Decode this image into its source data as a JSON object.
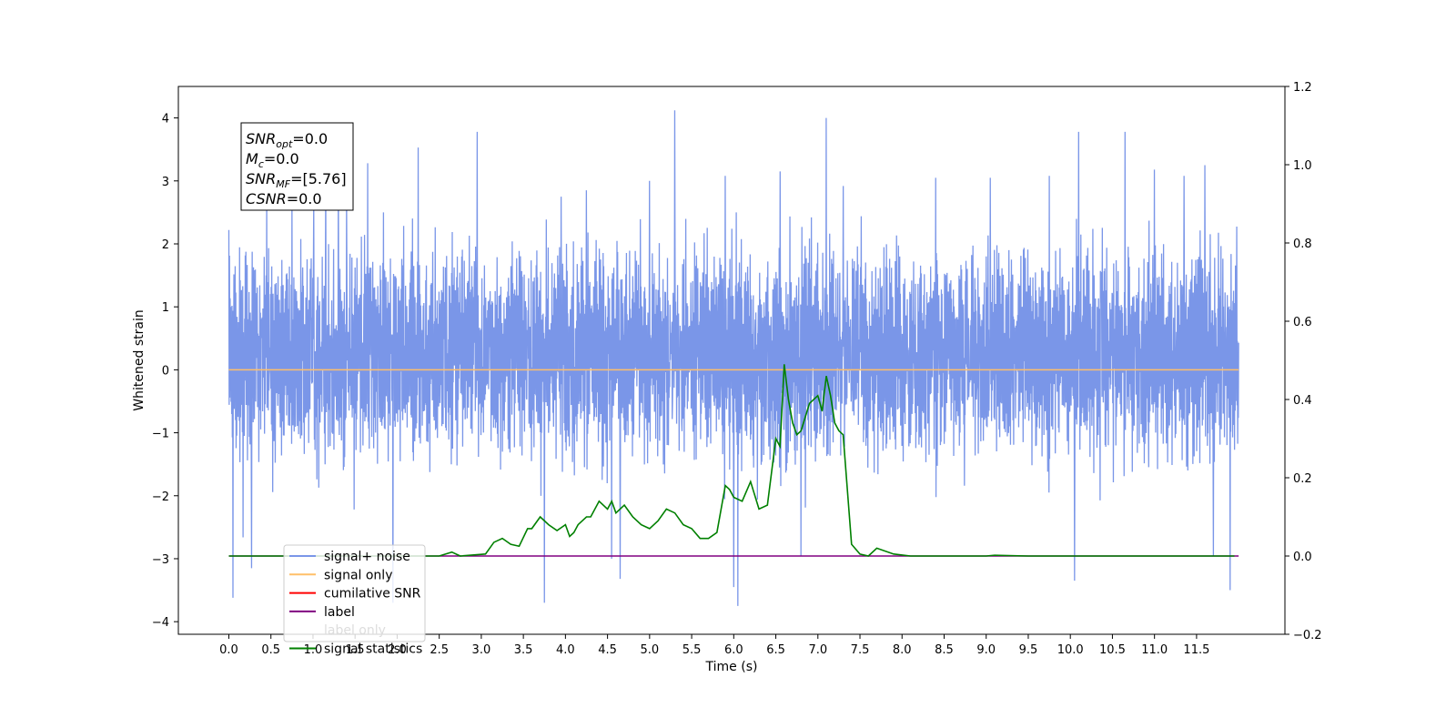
{
  "chart_data": {
    "type": "line",
    "xlabel": "Time (s)",
    "ylabel": "Whitened strain",
    "xlim": [
      -0.6,
      12.55
    ],
    "ylim": [
      -4.2,
      4.5
    ],
    "y2lim": [
      -0.2,
      1.2
    ],
    "x_ticks": [
      "0.0",
      "0.5",
      "1.0",
      "1.5",
      "2.0",
      "2.5",
      "3.0",
      "3.5",
      "4.0",
      "4.5",
      "5.0",
      "5.5",
      "6.0",
      "6.5",
      "7.0",
      "7.5",
      "8.0",
      "8.5",
      "9.0",
      "9.5",
      "10.0",
      "10.5",
      "11.0",
      "11.5"
    ],
    "y_ticks": [
      "4",
      "3",
      "2",
      "1",
      "0",
      "−1",
      "−2",
      "−3",
      "−4"
    ],
    "y2_ticks": [
      "1.2",
      "1.0",
      "0.8",
      "0.6",
      "0.4",
      "0.2",
      "0.0",
      "−0.2"
    ],
    "grid": false,
    "legend_position": "lower-left",
    "annotation": {
      "lines": [
        {
          "base": "SNR",
          "sub": "opt",
          "value": "=0.0"
        },
        {
          "base": "M",
          "sub": "c",
          "value": "=0.0"
        },
        {
          "base": "SNR",
          "sub": "MF",
          "value": "=[5.76]"
        },
        {
          "base": "CSNR",
          "sub": "",
          "value": "=0.0"
        }
      ]
    },
    "series": [
      {
        "name": "signal+ noise",
        "color": "#7a96e8",
        "axis": "left",
        "x_range": [
          0.0,
          12.0
        ],
        "description": "whitened noise, roughly in [-2, 2] with spikes",
        "peaks": [
          {
            "x": 0.0,
            "y": 2.22
          },
          {
            "x": 0.05,
            "y": -3.62
          },
          {
            "x": 0.17,
            "y": -2.66
          },
          {
            "x": 0.27,
            "y": -3.15
          },
          {
            "x": 0.45,
            "y": 2.78
          },
          {
            "x": 0.75,
            "y": 2.72
          },
          {
            "x": 1.01,
            "y": 2.65
          },
          {
            "x": 1.15,
            "y": 3.1
          },
          {
            "x": 1.3,
            "y": 3.03
          },
          {
            "x": 1.4,
            "y": 2.73
          },
          {
            "x": 1.65,
            "y": 3.28
          },
          {
            "x": 1.95,
            "y": -3.7
          },
          {
            "x": 2.25,
            "y": 3.53
          },
          {
            "x": 2.95,
            "y": 3.78
          },
          {
            "x": 3.75,
            "y": -3.7
          },
          {
            "x": 3.95,
            "y": 2.75
          },
          {
            "x": 4.25,
            "y": 2.85
          },
          {
            "x": 4.55,
            "y": -3.0
          },
          {
            "x": 4.65,
            "y": -3.32
          },
          {
            "x": 5.0,
            "y": 3.0
          },
          {
            "x": 5.3,
            "y": 4.12
          },
          {
            "x": 5.9,
            "y": 3.08
          },
          {
            "x": 6.0,
            "y": -3.45
          },
          {
            "x": 6.05,
            "y": -3.75
          },
          {
            "x": 6.55,
            "y": 3.15
          },
          {
            "x": 6.8,
            "y": -2.96
          },
          {
            "x": 7.1,
            "y": 4.0
          },
          {
            "x": 7.3,
            "y": 2.92
          },
          {
            "x": 8.4,
            "y": 3.05
          },
          {
            "x": 9.05,
            "y": 3.05
          },
          {
            "x": 9.75,
            "y": 3.08
          },
          {
            "x": 10.05,
            "y": -3.35
          },
          {
            "x": 10.1,
            "y": 3.78
          },
          {
            "x": 10.65,
            "y": 3.78
          },
          {
            "x": 11.0,
            "y": 3.18
          },
          {
            "x": 11.35,
            "y": 3.08
          },
          {
            "x": 11.6,
            "y": 3.25
          },
          {
            "x": 11.7,
            "y": -2.96
          },
          {
            "x": 11.9,
            "y": -3.5
          }
        ]
      },
      {
        "name": "signal only",
        "color": "#ffbf69",
        "axis": "left",
        "x": [
          0.0,
          12.0
        ],
        "y": [
          0.0,
          0.0
        ]
      },
      {
        "name": "cumilative SNR",
        "color": "#ff0000",
        "axis": "left",
        "x": [],
        "y": []
      },
      {
        "name": "label",
        "color": "#800080",
        "axis": "right",
        "x": [
          0.0,
          12.0
        ],
        "y": [
          0.0,
          0.0
        ]
      },
      {
        "name": "label only",
        "color": "#dddddd",
        "axis": "right",
        "x": [],
        "y": []
      },
      {
        "name": "signal statistics",
        "color": "#008000",
        "axis": "right",
        "x": [
          0.0,
          2.5,
          2.65,
          2.75,
          3.05,
          3.15,
          3.25,
          3.35,
          3.45,
          3.55,
          3.6,
          3.7,
          3.8,
          3.9,
          4.0,
          4.05,
          4.1,
          4.15,
          4.25,
          4.3,
          4.4,
          4.5,
          4.55,
          4.6,
          4.7,
          4.8,
          4.9,
          5.0,
          5.1,
          5.2,
          5.3,
          5.4,
          5.5,
          5.6,
          5.7,
          5.8,
          5.9,
          5.95,
          6.0,
          6.1,
          6.2,
          6.3,
          6.4,
          6.5,
          6.55,
          6.6,
          6.65,
          6.7,
          6.75,
          6.8,
          6.9,
          7.0,
          7.05,
          7.1,
          7.15,
          7.2,
          7.25,
          7.3,
          7.4,
          7.5,
          7.6,
          7.7,
          7.9,
          8.1,
          8.5,
          9.0,
          9.1,
          9.5,
          10.0,
          11.0,
          11.95
        ],
        "y": [
          0.0,
          0.0,
          0.01,
          0.0,
          0.005,
          0.035,
          0.045,
          0.03,
          0.025,
          0.07,
          0.07,
          0.1,
          0.08,
          0.065,
          0.08,
          0.05,
          0.06,
          0.08,
          0.1,
          0.1,
          0.14,
          0.12,
          0.14,
          0.11,
          0.13,
          0.1,
          0.08,
          0.07,
          0.09,
          0.12,
          0.11,
          0.08,
          0.07,
          0.045,
          0.045,
          0.06,
          0.18,
          0.17,
          0.15,
          0.14,
          0.19,
          0.12,
          0.13,
          0.3,
          0.28,
          0.49,
          0.4,
          0.34,
          0.31,
          0.32,
          0.39,
          0.41,
          0.37,
          0.46,
          0.41,
          0.34,
          0.32,
          0.31,
          0.03,
          0.005,
          0.0,
          0.02,
          0.005,
          0.0,
          0.0,
          0.0,
          0.002,
          0.0,
          0.0,
          0.0,
          0.0
        ]
      }
    ]
  }
}
